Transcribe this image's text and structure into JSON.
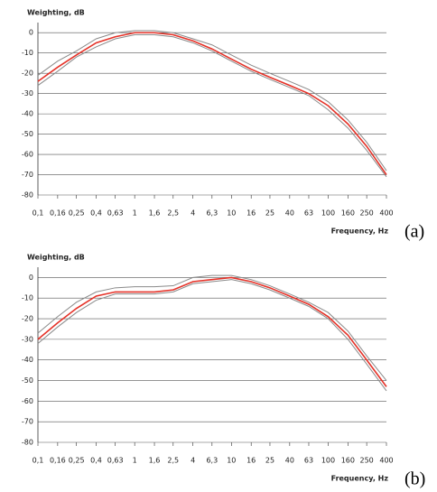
{
  "chart_data": [
    {
      "type": "line",
      "panel_label": "(a)",
      "ylabel": "Weighting, dB",
      "xlabel": "Frequency, Hz",
      "log_x": true,
      "grid": true,
      "x": [
        0.1,
        0.16,
        0.25,
        0.4,
        0.63,
        1,
        1.6,
        2.5,
        4,
        6.3,
        10,
        16,
        25,
        40,
        63,
        100,
        160,
        250,
        400
      ],
      "xlim": [
        0.1,
        400
      ],
      "xticks": [
        {
          "value": 0.1,
          "label": "0,1"
        },
        {
          "value": 0.16,
          "label": "0,16"
        },
        {
          "value": 0.25,
          "label": "0,25"
        },
        {
          "value": 0.4,
          "label": "0,4"
        },
        {
          "value": 0.63,
          "label": "0,63"
        },
        1,
        {
          "value": 1.6,
          "label": "1,6"
        },
        {
          "value": 2.5,
          "label": "2,5"
        },
        4,
        {
          "value": 6.3,
          "label": "6,3"
        },
        10,
        16,
        25,
        40,
        63,
        100,
        160,
        250,
        400
      ],
      "ylim": [
        -80,
        5
      ],
      "yticks": [
        0,
        -10,
        -20,
        -30,
        -40,
        -50,
        -60,
        -70,
        -80
      ],
      "series": [
        {
          "color": "#8a8a8a",
          "values": [
            -21,
            -14,
            -9,
            -3,
            0,
            1,
            1,
            0,
            -3,
            -6,
            -11,
            -16,
            -20,
            -24,
            -28,
            -34,
            -43,
            -54,
            -68
          ]
        },
        {
          "color": "#8a8a8a",
          "values": [
            -26,
            -19,
            -12,
            -7,
            -3,
            -1,
            -1,
            -2,
            -5,
            -9,
            -14,
            -19,
            -23,
            -27,
            -31,
            -38,
            -47,
            -58,
            -71
          ]
        },
        {
          "color": "#e53228",
          "values": [
            -24,
            -17,
            -11,
            -5,
            -2,
            0,
            0,
            -1,
            -4,
            -8,
            -13,
            -18,
            -22,
            -26,
            -30,
            -36,
            -45,
            -56,
            -70
          ]
        }
      ]
    },
    {
      "type": "line",
      "panel_label": "(b)",
      "ylabel": "Weighting, dB",
      "xlabel": "Frequency, Hz",
      "log_x": true,
      "grid": true,
      "x": [
        0.1,
        0.16,
        0.25,
        0.4,
        0.63,
        1,
        1.6,
        2.5,
        4,
        6.3,
        10,
        16,
        25,
        40,
        63,
        100,
        160,
        250,
        400
      ],
      "xlim": [
        0.1,
        400
      ],
      "xticks": [
        {
          "value": 0.1,
          "label": "0,1"
        },
        {
          "value": 0.16,
          "label": "0,16"
        },
        {
          "value": 0.25,
          "label": "0,25"
        },
        {
          "value": 0.4,
          "label": "0,4"
        },
        {
          "value": 0.63,
          "label": "0,63"
        },
        1,
        {
          "value": 1.6,
          "label": "1,6"
        },
        {
          "value": 2.5,
          "label": "2,5"
        },
        4,
        {
          "value": 6.3,
          "label": "6,3"
        },
        10,
        16,
        25,
        40,
        63,
        100,
        160,
        250,
        400
      ],
      "ylim": [
        -80,
        5
      ],
      "yticks": [
        0,
        -10,
        -20,
        -30,
        -40,
        -50,
        -60,
        -70,
        -80
      ],
      "series": [
        {
          "color": "#8a8a8a",
          "values": [
            -27,
            -19,
            -12,
            -7,
            -5,
            -4.5,
            -4.5,
            -4,
            0,
            1,
            1,
            -1,
            -4,
            -8,
            -12,
            -17,
            -26,
            -38,
            -50
          ]
        },
        {
          "color": "#8a8a8a",
          "values": [
            -32,
            -24,
            -17,
            -11,
            -8,
            -8,
            -8,
            -7,
            -3,
            -2,
            -1,
            -3,
            -6,
            -10,
            -14,
            -20,
            -30,
            -42,
            -55
          ]
        },
        {
          "color": "#e53228",
          "values": [
            -30,
            -22,
            -15,
            -9,
            -7,
            -7,
            -7,
            -6,
            -2,
            -1,
            0,
            -2,
            -5,
            -9,
            -13,
            -19,
            -28,
            -40,
            -53
          ]
        }
      ]
    }
  ]
}
